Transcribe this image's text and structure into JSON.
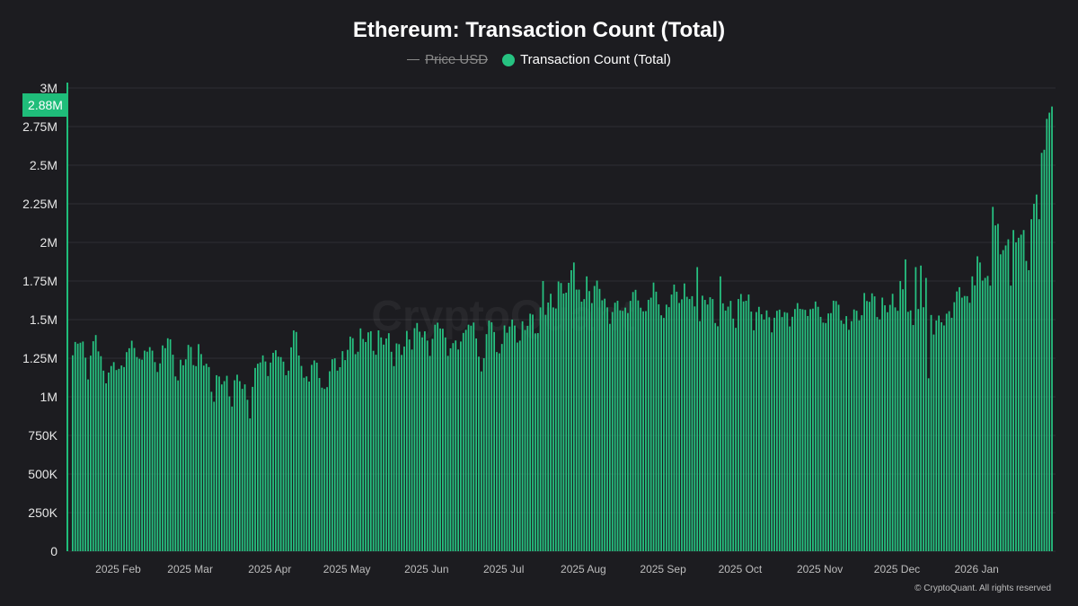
{
  "page": {
    "title": "Ethereum: Transaction Count (Total)",
    "legend": [
      {
        "label": "Price USD",
        "hidden": true,
        "color": "#8a8a8a"
      },
      {
        "label": "Transaction Count (Total)",
        "hidden": false,
        "color": "#26c281"
      }
    ],
    "watermark": "CryptoQuant",
    "footer": "© CryptoQuant. All rights reserved",
    "current_value_label": "2.88M"
  },
  "colors": {
    "background": "#1c1c20",
    "bar": "#26c281",
    "highlight": "#1fbd7a",
    "grid": "#2e2e33"
  },
  "chart_data": {
    "type": "bar",
    "title": "Ethereum: Transaction Count (Total)",
    "series_name": "Transaction Count (Total)",
    "ylim": [
      0,
      3000000
    ],
    "y_ticks": [
      {
        "value": 0,
        "label": "0"
      },
      {
        "value": 250000,
        "label": "250K"
      },
      {
        "value": 500000,
        "label": "500K"
      },
      {
        "value": 750000,
        "label": "750K"
      },
      {
        "value": 1000000,
        "label": "1M"
      },
      {
        "value": 1250000,
        "label": "1.25M"
      },
      {
        "value": 1500000,
        "label": "1.5M"
      },
      {
        "value": 1750000,
        "label": "1.75M"
      },
      {
        "value": 2000000,
        "label": "2M"
      },
      {
        "value": 2250000,
        "label": "2.25M"
      },
      {
        "value": 2500000,
        "label": "2.5M"
      },
      {
        "value": 2750000,
        "label": "2.75M"
      },
      {
        "value": 3000000,
        "label": "3M"
      }
    ],
    "x_ticks": [
      {
        "index": 18,
        "label": "2025 Feb"
      },
      {
        "index": 46,
        "label": "2025 Mar"
      },
      {
        "index": 77,
        "label": "2025 Apr"
      },
      {
        "index": 107,
        "label": "2025 May"
      },
      {
        "index": 138,
        "label": "2025 Jun"
      },
      {
        "index": 168,
        "label": "2025 Jul"
      },
      {
        "index": 199,
        "label": "2025 Aug"
      },
      {
        "index": 230,
        "label": "2025 Sep"
      },
      {
        "index": 260,
        "label": "2025 Oct"
      },
      {
        "index": 291,
        "label": "2025 Nov"
      },
      {
        "index": 321,
        "label": "2025 Dec"
      },
      {
        "index": 352,
        "label": "2026 Jan"
      }
    ],
    "grid": true,
    "anchors": [
      [
        0,
        1.24
      ],
      [
        3,
        1.38
      ],
      [
        6,
        1.28
      ],
      [
        9,
        1.4
      ],
      [
        12,
        1.17
      ],
      [
        15,
        1.18
      ],
      [
        18,
        1.24
      ],
      [
        21,
        1.33
      ],
      [
        25,
        1.27
      ],
      [
        29,
        1.35
      ],
      [
        33,
        1.25
      ],
      [
        37,
        1.35
      ],
      [
        41,
        1.22
      ],
      [
        45,
        1.3
      ],
      [
        50,
        1.27
      ],
      [
        55,
        1.13
      ],
      [
        58,
        1.1
      ],
      [
        61,
        1.05
      ],
      [
        65,
        1.15
      ],
      [
        69,
        1.0
      ],
      [
        73,
        1.24
      ],
      [
        76,
        1.28
      ],
      [
        80,
        1.3
      ],
      [
        84,
        1.18
      ],
      [
        86,
        1.42
      ],
      [
        89,
        1.28
      ],
      [
        92,
        1.13
      ],
      [
        95,
        1.23
      ],
      [
        98,
        1.05
      ],
      [
        102,
        1.3
      ],
      [
        106,
        1.25
      ],
      [
        109,
        1.36
      ],
      [
        112,
        1.43
      ],
      [
        116,
        1.4
      ],
      [
        120,
        1.35
      ],
      [
        124,
        1.4
      ],
      [
        128,
        1.3
      ],
      [
        132,
        1.43
      ],
      [
        136,
        1.45
      ],
      [
        140,
        1.4
      ],
      [
        143,
        1.45
      ],
      [
        146,
        1.38
      ],
      [
        150,
        1.35
      ],
      [
        153,
        1.5
      ],
      [
        156,
        1.42
      ],
      [
        159,
        1.25
      ],
      [
        162,
        1.55
      ],
      [
        165,
        1.3
      ],
      [
        168,
        1.43
      ],
      [
        172,
        1.5
      ],
      [
        176,
        1.45
      ],
      [
        180,
        1.5
      ],
      [
        184,
        1.6
      ],
      [
        188,
        1.7
      ],
      [
        192,
        1.67
      ],
      [
        195,
        1.75
      ],
      [
        198,
        1.65
      ],
      [
        202,
        1.72
      ],
      [
        206,
        1.68
      ],
      [
        210,
        1.6
      ],
      [
        214,
        1.55
      ],
      [
        218,
        1.7
      ],
      [
        222,
        1.62
      ],
      [
        226,
        1.65
      ],
      [
        230,
        1.6
      ],
      [
        234,
        1.7
      ],
      [
        238,
        1.68
      ],
      [
        242,
        1.6
      ],
      [
        246,
        1.65
      ],
      [
        250,
        1.55
      ],
      [
        254,
        1.62
      ],
      [
        258,
        1.6
      ],
      [
        262,
        1.62
      ],
      [
        266,
        1.58
      ],
      [
        270,
        1.55
      ],
      [
        274,
        1.5
      ],
      [
        278,
        1.6
      ],
      [
        282,
        1.57
      ],
      [
        286,
        1.58
      ],
      [
        290,
        1.6
      ],
      [
        294,
        1.55
      ],
      [
        298,
        1.6
      ],
      [
        302,
        1.5
      ],
      [
        306,
        1.6
      ],
      [
        310,
        1.62
      ],
      [
        314,
        1.65
      ],
      [
        318,
        1.58
      ],
      [
        322,
        1.7
      ],
      [
        326,
        1.55
      ],
      [
        330,
        1.58
      ],
      [
        334,
        1.55
      ],
      [
        338,
        1.5
      ],
      [
        342,
        1.62
      ],
      [
        346,
        1.65
      ],
      [
        350,
        1.75
      ],
      [
        354,
        1.78
      ],
      [
        357,
        1.85
      ],
      [
        360,
        2.0
      ],
      [
        363,
        1.95
      ],
      [
        366,
        2.02
      ],
      [
        369,
        2.05
      ],
      [
        372,
        1.92
      ],
      [
        375,
        2.2
      ],
      [
        377,
        2.31
      ],
      [
        379,
        2.6
      ],
      [
        380,
        2.8
      ],
      [
        381,
        2.88
      ]
    ],
    "overrides": [
      [
        8,
        1.36
      ],
      [
        9,
        1.4
      ],
      [
        86,
        1.43
      ],
      [
        87,
        1.42
      ],
      [
        183,
        1.75
      ],
      [
        194,
        1.82
      ],
      [
        195,
        1.87
      ],
      [
        200,
        1.78
      ],
      [
        226,
        1.74
      ],
      [
        243,
        1.84
      ],
      [
        252,
        1.78
      ],
      [
        297,
        1.62
      ],
      [
        324,
        1.89
      ],
      [
        328,
        1.84
      ],
      [
        330,
        1.85
      ],
      [
        332,
        1.77
      ],
      [
        333,
        1.12
      ],
      [
        345,
        1.71
      ],
      [
        350,
        1.78
      ],
      [
        352,
        1.91
      ],
      [
        353,
        1.87
      ],
      [
        357,
        1.72
      ],
      [
        358,
        2.23
      ],
      [
        359,
        2.11
      ],
      [
        360,
        2.12
      ],
      [
        362,
        1.95
      ],
      [
        363,
        1.98
      ],
      [
        364,
        2.02
      ],
      [
        365,
        1.72
      ],
      [
        366,
        2.08
      ],
      [
        367,
        2.0
      ],
      [
        368,
        2.03
      ],
      [
        369,
        2.05
      ],
      [
        370,
        2.08
      ],
      [
        371,
        1.88
      ],
      [
        372,
        1.82
      ],
      [
        373,
        2.15
      ],
      [
        374,
        2.25
      ],
      [
        375,
        2.31
      ],
      [
        376,
        2.15
      ],
      [
        377,
        2.58
      ],
      [
        378,
        2.6
      ],
      [
        379,
        2.8
      ],
      [
        380,
        2.84
      ],
      [
        381,
        2.88
      ]
    ],
    "count": 382,
    "scale": 1000000
  }
}
